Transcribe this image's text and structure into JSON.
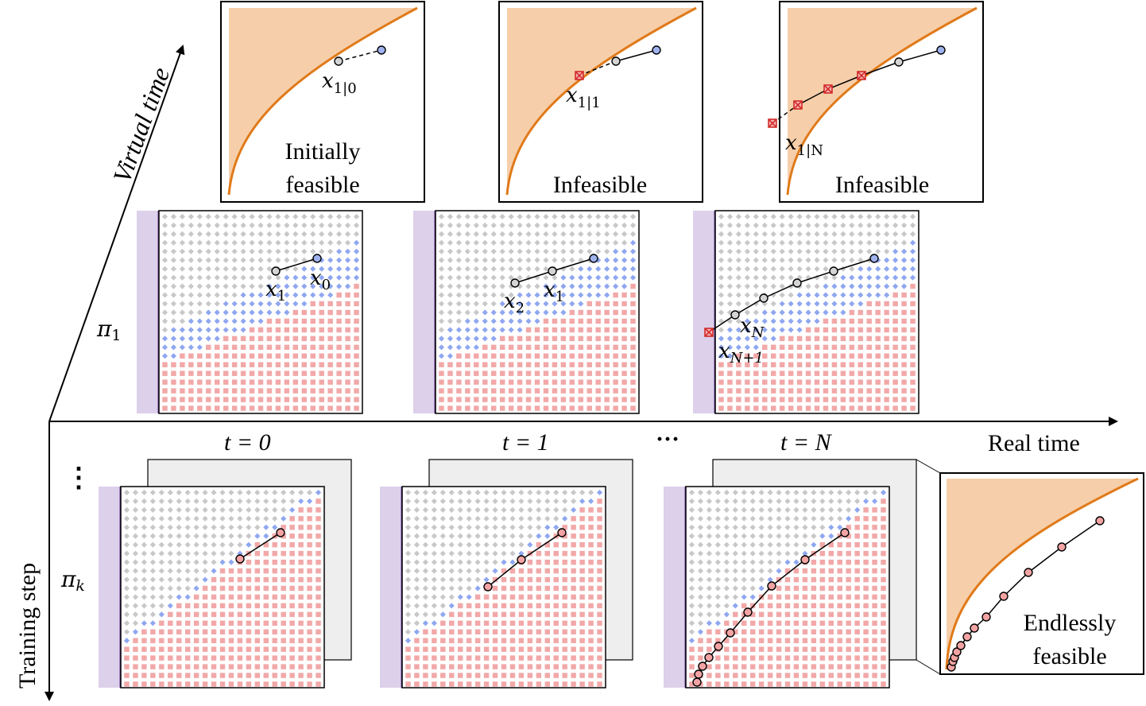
{
  "axes": {
    "virtual_time": "Virtual time",
    "real_time": "Real time",
    "training_step": "Training step"
  },
  "policies": {
    "pi_1": "π",
    "pi_1_sub": "1",
    "pi_k": "π",
    "pi_k_sub": "k"
  },
  "time_labels": {
    "t0": "t = 0",
    "t1": "t = 1",
    "tN": "t = N",
    "ellipsis": "···"
  },
  "vertical_ellipsis": "⋮",
  "top_panels": [
    {
      "status_line1": "Initially",
      "status_line2": "feasible",
      "color": "#2a35c0",
      "state_label": "x",
      "state_sub": "1|0"
    },
    {
      "status_line1": "Infeasible",
      "status_line2": "",
      "color": "#000000",
      "state_label": "x",
      "state_sub": "1|1"
    },
    {
      "status_line1": "Infeasible",
      "status_line2": "",
      "color": "#000000",
      "state_label": "x",
      "state_sub": "1|N"
    }
  ],
  "middle_labels": {
    "p1_a": "x",
    "p1_a_sub": "1",
    "p1_b": "x",
    "p1_b_sub": "0",
    "p2_a": "x",
    "p2_a_sub": "2",
    "p2_b": "x",
    "p2_b_sub": "1",
    "p3_a": "x",
    "p3_a_sub": "N",
    "p3_b": "x",
    "p3_b_sub": "N+1"
  },
  "bottom_status": {
    "line1": "Endlessly",
    "line2": "feasible",
    "color": "#b01818"
  },
  "colors": {
    "feasible_region": "#f6cfaa",
    "constraint_boundary": "#e07a1a",
    "grid_gray": "#c8c8c8",
    "grid_blue": "#8fa7f0",
    "grid_red": "#f2a8a8",
    "wall": "#dcd0ea",
    "wall_edge": "#6a3a9a",
    "node_blue": "#9fb2ee",
    "node_gray": "#d4d4d4",
    "node_red": "#f3a3a3",
    "node_infeasible": "#d02020"
  }
}
